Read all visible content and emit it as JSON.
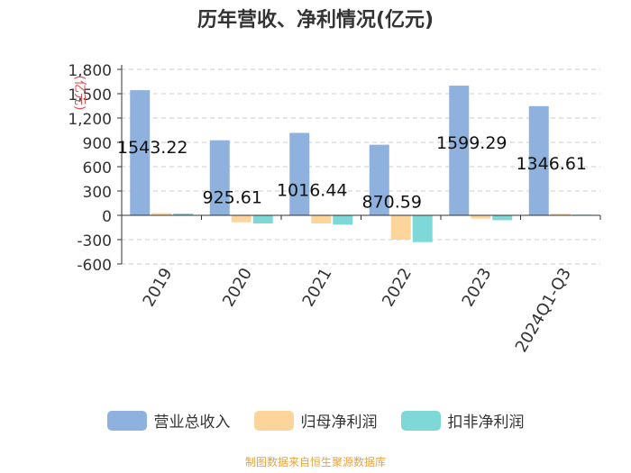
{
  "chart_data": {
    "type": "bar",
    "title": "历年营收、净利情况(亿元)",
    "ylabel": "(亿元)",
    "xlabel": "",
    "categories": [
      "2019",
      "2020",
      "2021",
      "2022",
      "2023",
      "2024Q1-Q3"
    ],
    "ylim": [
      -600,
      1800
    ],
    "yticks": [
      "-600",
      "-300",
      "0",
      "300",
      "600",
      "900",
      "1,200",
      "1,500",
      "1,800"
    ],
    "ytick_values": [
      -600,
      -300,
      0,
      300,
      600,
      900,
      1200,
      1500,
      1800
    ],
    "grid": true,
    "legend_position": "bottom",
    "series": [
      {
        "name": "营业总收入",
        "color": "#8eb1dd",
        "values": [
          1543.22,
          925.61,
          1016.44,
          870.59,
          1599.29,
          1346.61
        ],
        "labels": [
          "1543.22",
          "925.61",
          "1016.44",
          "870.59",
          "1599.29",
          "1346.61"
        ]
      },
      {
        "name": "归母净利润",
        "color": "#fdd59a",
        "values": [
          28,
          -85,
          -100,
          -300,
          -40,
          20
        ]
      },
      {
        "name": "扣非净利润",
        "color": "#7fd8d8",
        "values": [
          22,
          -100,
          -115,
          -330,
          -60,
          8
        ]
      }
    ]
  },
  "source": "制图数据来自恒生聚源数据库",
  "colors": {
    "title": "#333333",
    "source": "#e8a33c",
    "unit_label": "#e05050",
    "axis": "#333333",
    "grid": "#cccccc"
  }
}
